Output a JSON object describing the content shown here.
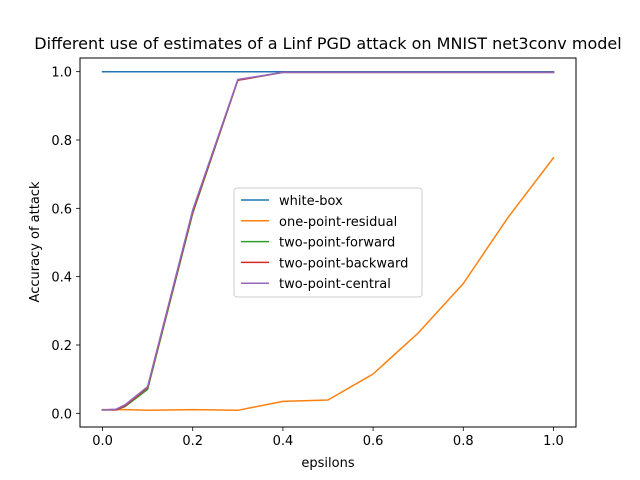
{
  "chart_data": {
    "type": "line",
    "title": "Different use of estimates of a Linf PGD attack on MNIST net3conv model",
    "xlabel": "epsilons",
    "ylabel": "Accuracy of attack",
    "xlim": [
      -0.05,
      1.05
    ],
    "ylim": [
      -0.04,
      1.04
    ],
    "xticks": [
      0.0,
      0.2,
      0.4,
      0.6,
      0.8,
      1.0
    ],
    "xtick_labels": [
      "0.0",
      "0.2",
      "0.4",
      "0.6",
      "0.8",
      "1.0"
    ],
    "yticks": [
      0.0,
      0.2,
      0.4,
      0.6,
      0.8,
      1.0
    ],
    "ytick_labels": [
      "0.0",
      "0.2",
      "0.4",
      "0.6",
      "0.8",
      "1.0"
    ],
    "grid": false,
    "legend_position": "center",
    "x": [
      0.0,
      0.03,
      0.05,
      0.1,
      0.2,
      0.3,
      0.4,
      0.5,
      0.6,
      0.7,
      0.8,
      0.9,
      1.0
    ],
    "series": [
      {
        "name": "white-box",
        "color": "#1f77b4",
        "values": [
          1.0,
          1.0,
          1.0,
          1.0,
          1.0,
          1.0,
          1.0,
          1.0,
          1.0,
          1.0,
          1.0,
          1.0,
          1.0
        ]
      },
      {
        "name": "one-point-residual",
        "color": "#ff7f0e",
        "values": [
          0.011,
          0.011,
          0.011,
          0.009,
          0.011,
          0.009,
          0.035,
          0.039,
          0.115,
          0.235,
          0.38,
          0.575,
          0.748
        ]
      },
      {
        "name": "two-point-forward",
        "color": "#2ca02c",
        "values": [
          0.01,
          0.01,
          0.02,
          0.07,
          0.585,
          0.975,
          0.998,
          0.998,
          0.998,
          0.998,
          0.998,
          0.998,
          0.998
        ]
      },
      {
        "name": "two-point-backward",
        "color": "#d62728",
        "values": [
          0.01,
          0.01,
          0.022,
          0.075,
          0.59,
          0.975,
          0.998,
          0.998,
          0.998,
          0.998,
          0.998,
          0.998,
          0.998
        ]
      },
      {
        "name": "two-point-central",
        "color": "#9467bd",
        "values": [
          0.01,
          0.012,
          0.025,
          0.078,
          0.595,
          0.977,
          0.998,
          0.998,
          0.998,
          0.998,
          0.998,
          0.998,
          0.998
        ]
      }
    ]
  }
}
